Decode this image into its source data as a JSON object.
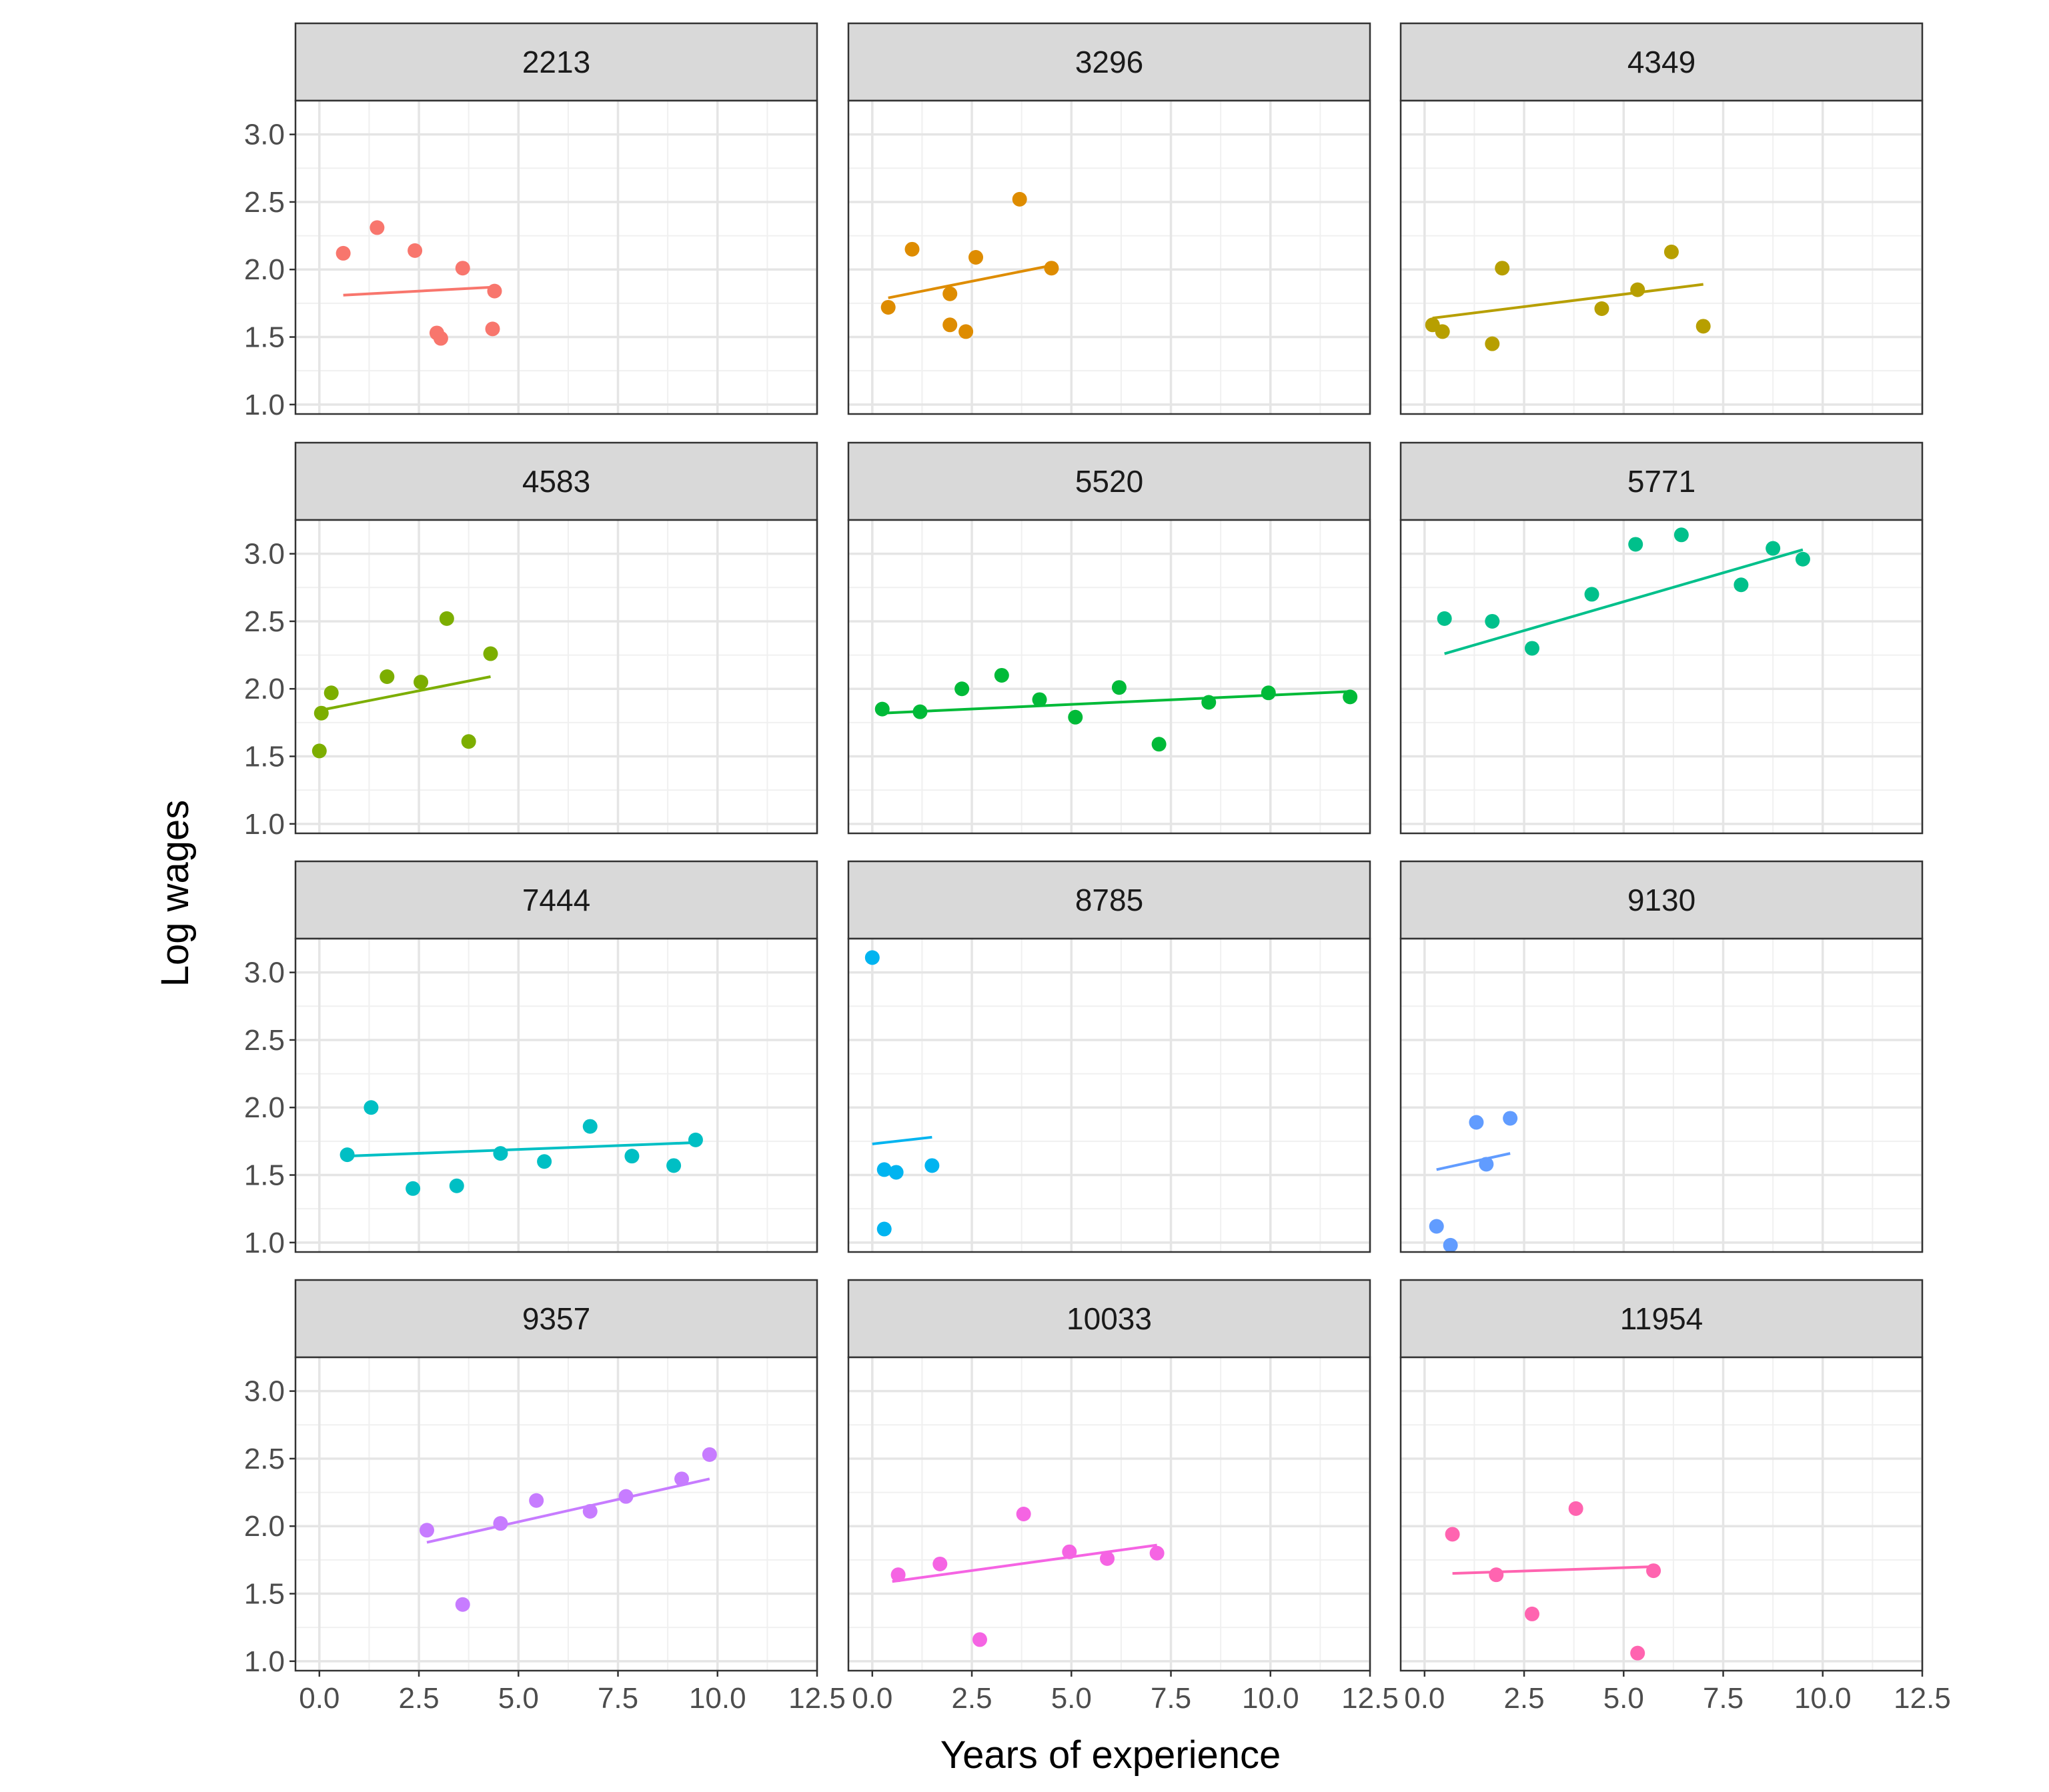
{
  "chart_data": {
    "type": "scatter",
    "title": "",
    "xlabel": "Years of experience",
    "ylabel": "Log wages",
    "xlim": [
      -0.6,
      12.5
    ],
    "ylim": [
      0.93,
      3.25
    ],
    "xticks": [
      0.0,
      2.5,
      5.0,
      7.5,
      10.0,
      12.5
    ],
    "xtick_labels": [
      "0.0",
      "2.5",
      "5.0",
      "7.5",
      "10.0",
      "12.5"
    ],
    "yticks": [
      1.0,
      1.5,
      2.0,
      2.5,
      3.0
    ],
    "ytick_labels": [
      "1.0",
      "1.5",
      "2.0",
      "2.5",
      "3.0"
    ],
    "grid": true,
    "legend": "none",
    "facets": [
      {
        "id": "2213",
        "color": "#F8766D",
        "points": [
          [
            0.6,
            2.12
          ],
          [
            1.45,
            2.31
          ],
          [
            2.4,
            2.14
          ],
          [
            3.6,
            2.01
          ],
          [
            2.95,
            1.53
          ],
          [
            3.05,
            1.49
          ],
          [
            4.4,
            1.84
          ],
          [
            4.35,
            1.56
          ]
        ],
        "fit": [
          [
            0.6,
            1.81
          ],
          [
            4.4,
            1.87
          ]
        ]
      },
      {
        "id": "3296",
        "color": "#DE8C00",
        "points": [
          [
            0.4,
            1.72
          ],
          [
            1.0,
            2.15
          ],
          [
            1.95,
            1.82
          ],
          [
            1.95,
            1.59
          ],
          [
            2.35,
            1.54
          ],
          [
            2.6,
            2.09
          ],
          [
            3.7,
            2.52
          ],
          [
            4.5,
            2.01
          ]
        ],
        "fit": [
          [
            0.4,
            1.79
          ],
          [
            4.5,
            2.03
          ]
        ]
      },
      {
        "id": "4349",
        "color": "#B79F00",
        "points": [
          [
            0.2,
            1.59
          ],
          [
            0.45,
            1.54
          ],
          [
            1.7,
            1.45
          ],
          [
            1.95,
            2.01
          ],
          [
            4.45,
            1.71
          ],
          [
            5.35,
            1.85
          ],
          [
            6.2,
            2.13
          ],
          [
            7.0,
            1.58
          ]
        ],
        "fit": [
          [
            0.2,
            1.64
          ],
          [
            7.0,
            1.89
          ]
        ]
      },
      {
        "id": "4583",
        "color": "#7CAE00",
        "points": [
          [
            0.0,
            1.54
          ],
          [
            0.05,
            1.82
          ],
          [
            0.3,
            1.97
          ],
          [
            1.7,
            2.09
          ],
          [
            2.55,
            2.05
          ],
          [
            3.2,
            2.52
          ],
          [
            3.75,
            1.61
          ],
          [
            4.3,
            2.26
          ]
        ],
        "fit": [
          [
            0.0,
            1.84
          ],
          [
            4.3,
            2.09
          ]
        ]
      },
      {
        "id": "5520",
        "color": "#00BA38",
        "points": [
          [
            0.25,
            1.85
          ],
          [
            1.2,
            1.83
          ],
          [
            2.25,
            2.0
          ],
          [
            3.25,
            2.1
          ],
          [
            4.2,
            1.92
          ],
          [
            5.1,
            1.79
          ],
          [
            6.2,
            2.01
          ],
          [
            7.2,
            1.59
          ],
          [
            8.45,
            1.9
          ],
          [
            9.95,
            1.97
          ],
          [
            12.0,
            1.94
          ]
        ],
        "fit": [
          [
            0.25,
            1.82
          ],
          [
            12.0,
            1.98
          ]
        ]
      },
      {
        "id": "5771",
        "color": "#00C08B",
        "points": [
          [
            0.5,
            2.52
          ],
          [
            1.7,
            2.5
          ],
          [
            2.7,
            2.3
          ],
          [
            4.2,
            2.7
          ],
          [
            5.3,
            3.07
          ],
          [
            6.45,
            3.14
          ],
          [
            7.95,
            2.77
          ],
          [
            8.75,
            3.04
          ],
          [
            9.5,
            2.96
          ]
        ],
        "fit": [
          [
            0.5,
            2.26
          ],
          [
            9.5,
            3.03
          ]
        ]
      },
      {
        "id": "7444",
        "color": "#00BFC4",
        "points": [
          [
            0.7,
            1.65
          ],
          [
            1.3,
            2.0
          ],
          [
            2.35,
            1.4
          ],
          [
            3.45,
            1.42
          ],
          [
            4.55,
            1.66
          ],
          [
            5.65,
            1.6
          ],
          [
            6.8,
            1.86
          ],
          [
            7.85,
            1.64
          ],
          [
            8.9,
            1.57
          ],
          [
            9.45,
            1.76
          ]
        ],
        "fit": [
          [
            0.7,
            1.64
          ],
          [
            9.45,
            1.74
          ]
        ]
      },
      {
        "id": "8785",
        "color": "#00B4F0",
        "points": [
          [
            0.0,
            3.11
          ],
          [
            0.3,
            1.54
          ],
          [
            0.3,
            1.1
          ],
          [
            0.6,
            1.52
          ],
          [
            1.5,
            1.57
          ]
        ],
        "fit": [
          [
            0.0,
            1.73
          ],
          [
            1.5,
            1.78
          ]
        ]
      },
      {
        "id": "9130",
        "color": "#619CFF",
        "points": [
          [
            0.3,
            1.12
          ],
          [
            0.65,
            0.98
          ],
          [
            1.3,
            1.89
          ],
          [
            1.55,
            1.58
          ],
          [
            2.15,
            1.92
          ]
        ],
        "fit": [
          [
            0.3,
            1.54
          ],
          [
            2.15,
            1.66
          ]
        ]
      },
      {
        "id": "9357",
        "color": "#C77CFF",
        "points": [
          [
            2.7,
            1.97
          ],
          [
            3.6,
            1.42
          ],
          [
            4.55,
            2.02
          ],
          [
            5.45,
            2.19
          ],
          [
            6.8,
            2.11
          ],
          [
            7.7,
            2.22
          ],
          [
            9.1,
            2.35
          ],
          [
            9.8,
            2.53
          ]
        ],
        "fit": [
          [
            2.7,
            1.88
          ],
          [
            9.8,
            2.35
          ]
        ]
      },
      {
        "id": "10033",
        "color": "#F564E3",
        "points": [
          [
            0.65,
            1.64
          ],
          [
            1.7,
            1.72
          ],
          [
            2.7,
            1.16
          ],
          [
            3.8,
            2.09
          ],
          [
            4.95,
            1.81
          ],
          [
            5.9,
            1.76
          ],
          [
            7.15,
            1.8
          ]
        ],
        "fit": [
          [
            0.5,
            1.59
          ],
          [
            7.15,
            1.86
          ]
        ]
      },
      {
        "id": "11954",
        "color": "#FF64B0",
        "points": [
          [
            0.7,
            1.94
          ],
          [
            1.8,
            1.64
          ],
          [
            2.7,
            1.35
          ],
          [
            3.8,
            2.13
          ],
          [
            5.35,
            1.06
          ],
          [
            5.75,
            1.67
          ]
        ],
        "fit": [
          [
            0.7,
            1.65
          ],
          [
            5.75,
            1.7
          ]
        ]
      }
    ]
  }
}
